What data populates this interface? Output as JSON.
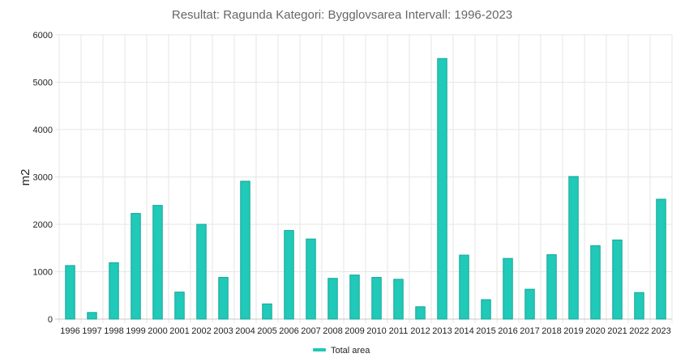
{
  "chart_data": {
    "type": "bar",
    "title": "Resultat: Ragunda Kategori: Bygglovsarea Intervall: 1996-2023",
    "xlabel": "",
    "ylabel": "m2",
    "ylim": [
      0,
      6000
    ],
    "yticks": [
      0,
      1000,
      2000,
      3000,
      4000,
      5000,
      6000
    ],
    "grid": true,
    "legend_position": "bottom-center",
    "bar_color": "#20c9b8",
    "bar_edge_color": "#14a898",
    "categories": [
      "1996",
      "1997",
      "1998",
      "1999",
      "2000",
      "2001",
      "2002",
      "2003",
      "2004",
      "2005",
      "2006",
      "2007",
      "2008",
      "2009",
      "2010",
      "2011",
      "2012",
      "2013",
      "2014",
      "2015",
      "2016",
      "2017",
      "2018",
      "2019",
      "2020",
      "2021",
      "2022",
      "2023"
    ],
    "series": [
      {
        "name": "Total area",
        "values": [
          1130,
          140,
          1190,
          2230,
          2400,
          570,
          2000,
          880,
          2910,
          320,
          1870,
          1690,
          860,
          930,
          880,
          840,
          260,
          5500,
          1350,
          410,
          1280,
          630,
          1360,
          3010,
          1550,
          1670,
          560,
          2530
        ]
      }
    ]
  }
}
